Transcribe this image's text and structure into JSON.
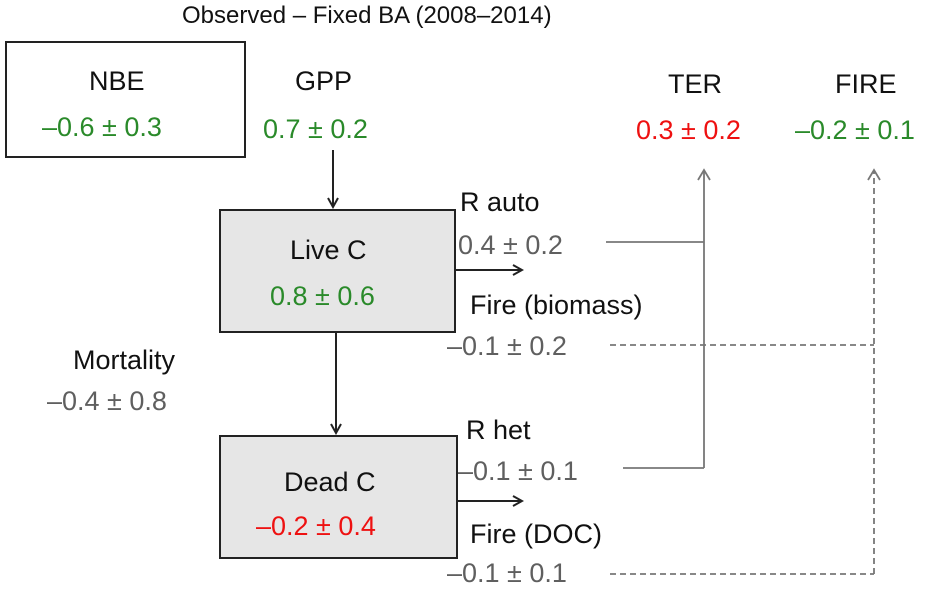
{
  "title": "Observed – Fixed BA (2008–2014)",
  "colors": {
    "increase": "#ee1111",
    "decrease": "#2a8a2a",
    "neutral": "#5f5f5f",
    "dark": "#222222",
    "fire_line": "#777777"
  },
  "nbe": {
    "label": "NBE",
    "value": "–0.6 ± 0.3"
  },
  "gpp": {
    "label": "GPP",
    "value": "0.7 ± 0.2"
  },
  "ter": {
    "label": "TER",
    "value": "0.3 ± 0.2"
  },
  "fire": {
    "label": "FIRE",
    "value": "–0.2 ± 0.1"
  },
  "live_c": {
    "label": "Live C",
    "value": "0.8 ± 0.6"
  },
  "dead_c": {
    "label": "Dead C",
    "value": "–0.2 ± 0.4"
  },
  "mortality": {
    "label": "Mortality",
    "value": "–0.4 ± 0.8"
  },
  "r_auto": {
    "label": "R auto",
    "value": "0.4 ± 0.2"
  },
  "fire_biomass": {
    "label": "Fire (biomass)",
    "value": "–0.1 ± 0.2"
  },
  "r_het": {
    "label": "R het",
    "value": "–0.1 ± 0.1"
  },
  "fire_doc": {
    "label": "Fire (DOC)",
    "value": "–0.1 ± 0.1"
  }
}
